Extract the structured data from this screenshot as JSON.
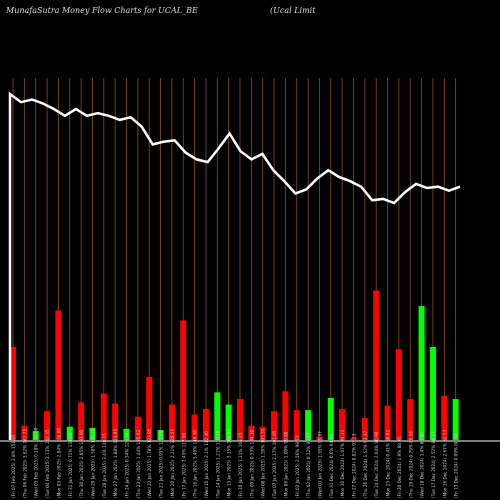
{
  "header": {
    "title": "MunafaSutra  Money Flow  Charts for UCAL_BE",
    "company": "(Ucal Limit"
  },
  "colors": {
    "background": "#000000",
    "grid": "#8b4f10",
    "line": "#ffffff",
    "up": "#00ff00",
    "down": "#ff0000"
  },
  "chart_data": {
    "type": "bar",
    "title": "MunafaSutra  Money Flow  Charts for UCAL_BE",
    "price_line": [
      360,
      354,
      356,
      353,
      349,
      344,
      349,
      344,
      346,
      344,
      341,
      343,
      336,
      323,
      325,
      326,
      317,
      312,
      310,
      320,
      331,
      318,
      312,
      316,
      304,
      296,
      287,
      290,
      298,
      304,
      299,
      296,
      292,
      282,
      283,
      280,
      288,
      294,
      291,
      292,
      289,
      292
    ],
    "bars": [
      {
        "label": "(Fri 07 Feb 2025) 2.8% 151.85",
        "value": 84,
        "color": "red"
      },
      {
        "label": "(Thu 06 Feb 2025) 3.62% 147.75",
        "value": 13,
        "color": "red"
      },
      {
        "label": "(Wed 05 Feb 2025) 0.18% 142.60",
        "value": 8,
        "color": "green"
      },
      {
        "label": "(Tue 04 Feb 2025) 2.73% 142.35",
        "value": 26,
        "color": "red"
      },
      {
        "label": "(Mon 03 Feb 2025) 2.84% 138.60",
        "value": 117,
        "color": "red"
      },
      {
        "label": "(Fri 31 Jan 2025) 0.71% 134.85",
        "value": 12,
        "color": "green"
      },
      {
        "label": "(Thu 30 Jan 2025) 2.85% 133.90",
        "value": 34,
        "color": "red"
      },
      {
        "label": "(Wed 29 Jan 2025) 1.58% 130.20",
        "value": 11,
        "color": "green"
      },
      {
        "label": "(Tue 28 Jan 2025) 3.4% 128.15",
        "value": 42,
        "color": "red"
      },
      {
        "label": "(Mon 27 Jan 2025) 1.88% 123.95",
        "value": 33,
        "color": "red"
      },
      {
        "label": "(Fri 24 Jan 2025) 0.54% 126.30",
        "value": 10,
        "color": "green"
      },
      {
        "label": "(Thu 23 Jan 2025) 1.44% 125.62",
        "value": 21,
        "color": "red"
      },
      {
        "label": "(Wed 22 Jan 2025) 1.78% 123.85",
        "value": 57,
        "color": "red"
      },
      {
        "label": "(Tue 21 Jan 2025) 0.95% 121.69",
        "value": 9,
        "color": "green"
      },
      {
        "label": "(Mon 20 Jan 2025) 2.21% 120.55",
        "value": 32,
        "color": "red"
      },
      {
        "label": "(Fri 17 Jan 2025) 1.43% 117.95",
        "value": 108,
        "color": "red"
      },
      {
        "label": "(Thu 16 Jan 2025) 3.49% 116.30",
        "value": 23,
        "color": "red"
      },
      {
        "label": "(Wed 15 Jan 2025) 2.1% 112.40",
        "value": 28,
        "color": "red"
      },
      {
        "label": "(Tue 14 Jan 2025) 1.21% 110.10",
        "value": 43,
        "color": "green"
      },
      {
        "label": "(Mon 13 Jan 2025) 3.35% 108.80",
        "value": 32,
        "color": "green"
      },
      {
        "label": "(Fri 10 Jan 2025) 1.11% 105.25",
        "value": 37,
        "color": "red"
      },
      {
        "label": "(Thu 09 Jan 2025) 0.53% 104.10",
        "value": 13,
        "color": "red"
      },
      {
        "label": "(Wed 08 Jan 2025) 1.59% 103.55",
        "value": 12,
        "color": "red"
      },
      {
        "label": "(Tue 07 Jan 2025) 2.17% 101.95",
        "value": 26,
        "color": "red"
      },
      {
        "label": "(Mon 06 Jan 2025) 1.09% 99.80",
        "value": 44,
        "color": "red"
      },
      {
        "label": "(Fri 03 Jan 2025) 2.56% 98.73",
        "value": 27,
        "color": "red"
      },
      {
        "label": "(Thu 02 Jan 2025) 0.32% 96.27",
        "value": 27,
        "color": "green"
      },
      {
        "label": "(Wed 01 Jan 2025) 1.35% 95.97",
        "value": 3,
        "color": "red"
      },
      {
        "label": "(Tue 31 Dec 2024) 0.6% 94.69",
        "value": 38,
        "color": "green"
      },
      {
        "label": "(Mon 30 Dec 2024) 1.07% 94.13",
        "value": 28,
        "color": "red"
      },
      {
        "label": "(Fri 27 Dec 2024) 0.82% 93.13",
        "value": 2,
        "color": "red"
      },
      {
        "label": "(Thu 26 Dec 2024) 1.52% 92.37",
        "value": 20,
        "color": "red"
      },
      {
        "label": "(Tue 24 Dec 2024) 2.64% 90.96",
        "value": 135,
        "color": "red"
      },
      {
        "label": "(Mon 23 Dec 2024) 0.41% 88.62",
        "value": 31,
        "color": "red"
      },
      {
        "label": "(Fri 20 Dec 2024) 1.9% 88.26",
        "value": 82,
        "color": "red"
      },
      {
        "label": "(Thu 19 Dec 2024) 0.79% 86.58",
        "value": 37,
        "color": "red"
      },
      {
        "label": "(Wed 18 Dec 2024) 1.4% 85.90",
        "value": 121,
        "color": "green"
      },
      {
        "label": "(Tue 17 Dec 2024) 2.52% 84.71",
        "value": 84,
        "color": "green"
      },
      {
        "label": "(Mon 16 Dec 2024) 2.67% 82.53",
        "value": 40,
        "color": "red"
      },
      {
        "label": "(Fri 13 Dec 2024) 0.09% 80.38",
        "value": 37,
        "color": "green"
      }
    ],
    "grid": true,
    "xlabel": "",
    "ylabel": ""
  }
}
